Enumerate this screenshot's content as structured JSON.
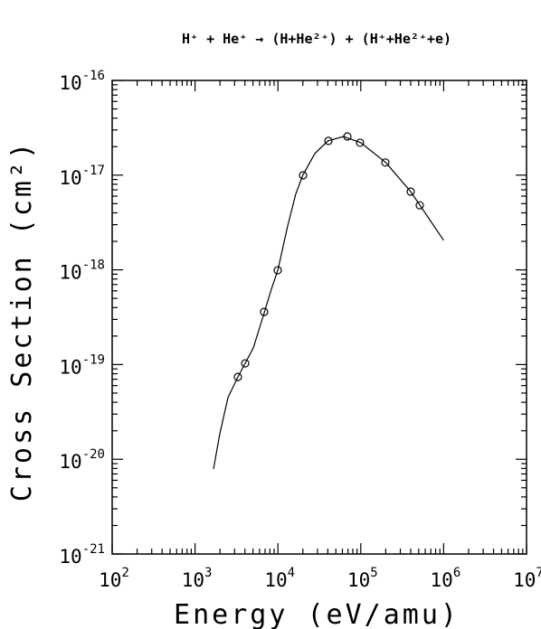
{
  "chart_data": {
    "type": "scatter",
    "title": "H⁺ + He⁺ → (H+He²⁺) + (H⁺+He²⁺+e)",
    "x_label": "Energy (eV/amu)",
    "y_label": "Cross Section (cm²)",
    "xscale": "log",
    "yscale": "log",
    "xlim": [
      100,
      10000000
    ],
    "ylim": [
      1e-21,
      1e-16
    ],
    "xticks": [
      {
        "value": 100,
        "label": "10",
        "exponent": "2"
      },
      {
        "value": 1000,
        "label": "10",
        "exponent": "3"
      },
      {
        "value": 10000,
        "label": "10",
        "exponent": "4"
      },
      {
        "value": 100000,
        "label": "10",
        "exponent": "5"
      },
      {
        "value": 1000000,
        "label": "10",
        "exponent": "6"
      },
      {
        "value": 10000000,
        "label": "10",
        "exponent": "7"
      }
    ],
    "yticks": [
      {
        "value": 1e-21,
        "label": "10",
        "exponent": "-21"
      },
      {
        "value": 1e-20,
        "label": "10",
        "exponent": "-20"
      },
      {
        "value": 1e-19,
        "label": "10",
        "exponent": "-19"
      },
      {
        "value": 1e-18,
        "label": "10",
        "exponent": "-18"
      },
      {
        "value": 1e-17,
        "label": "10",
        "exponent": "-17"
      },
      {
        "value": 1e-16,
        "label": "10",
        "exponent": "-16"
      }
    ],
    "series": [
      {
        "mode": "markers",
        "color": "#000000",
        "x": [
          3290,
          4030,
          6820,
          9950,
          20100,
          40700,
          68900,
          98000,
          198000,
          400000,
          515000
        ],
        "values": [
          7.4e-20,
          1.03e-19,
          3.6e-19,
          9.9e-19,
          9.96e-18,
          2.3e-17,
          2.56e-17,
          2.2e-17,
          1.36e-17,
          6.7e-18,
          4.8e-18
        ]
      },
      {
        "mode": "line",
        "color": "#000000",
        "x": [
          1670,
          1990,
          2500,
          3290,
          5050,
          6820,
          8340,
          10000,
          13100,
          16400,
          20000,
          27900,
          40000,
          62000,
          100000,
          200000,
          400000,
          1000000
        ],
        "values": [
          7.9e-21,
          1.86e-20,
          4.5e-20,
          7.4e-20,
          1.5e-19,
          3.5e-19,
          6.25e-19,
          1e-18,
          2.9e-18,
          6.3e-18,
          1e-17,
          1.69e-17,
          2.3e-17,
          2.56e-17,
          2.2e-17,
          1.36e-17,
          6.7e-18,
          2.05e-18
        ]
      }
    ]
  }
}
